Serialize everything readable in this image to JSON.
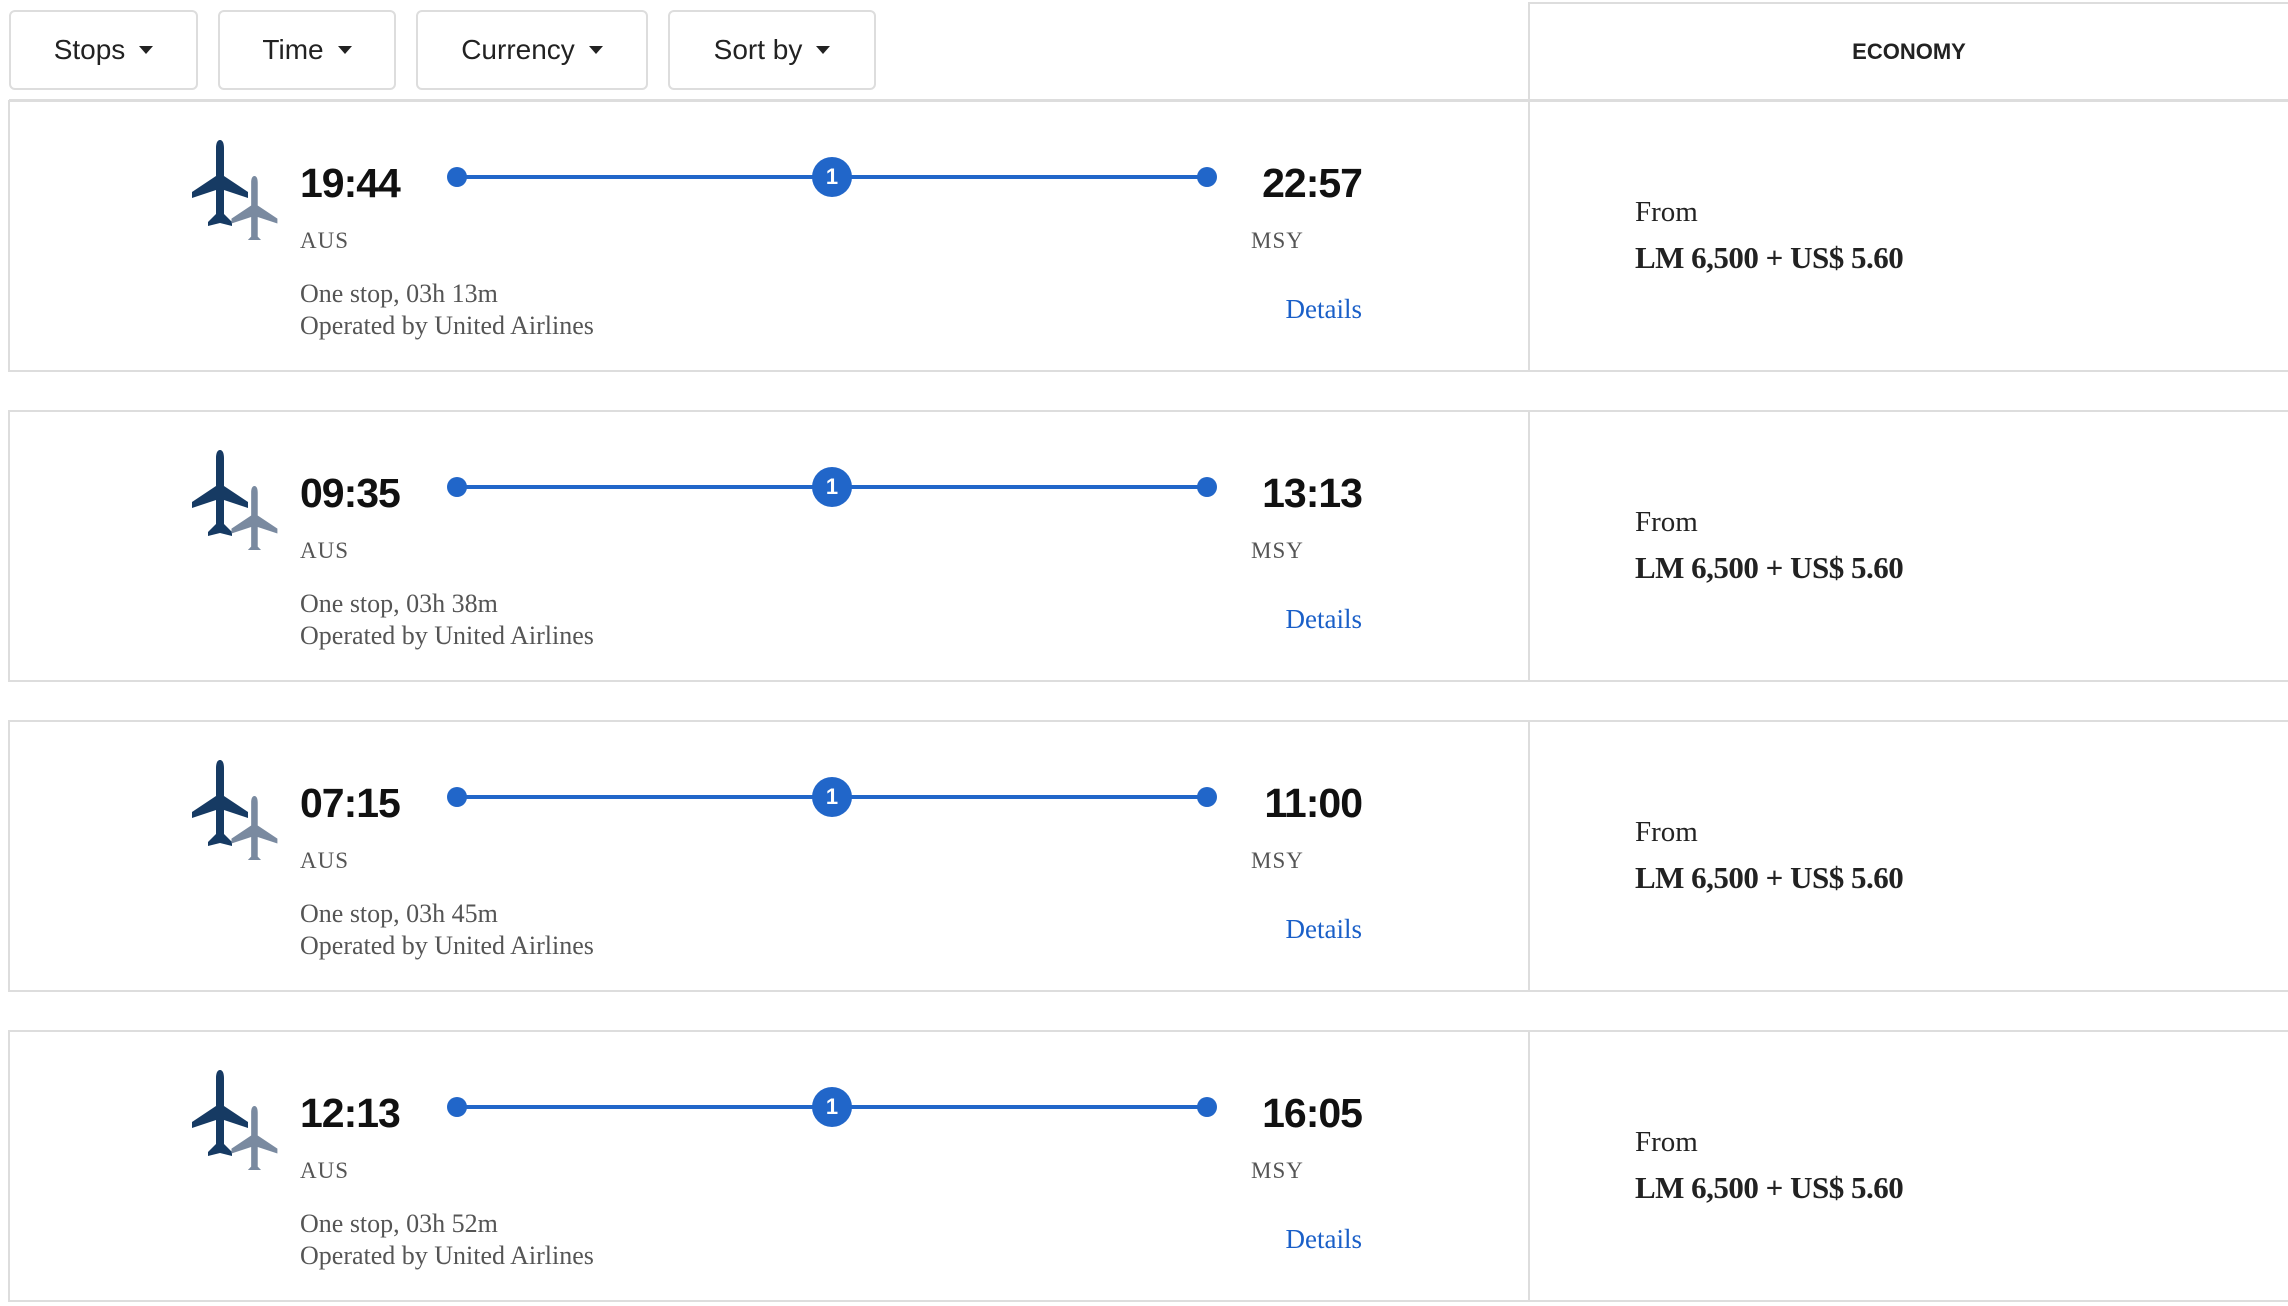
{
  "filters": [
    {
      "label": "Stops"
    },
    {
      "label": "Time"
    },
    {
      "label": "Currency"
    },
    {
      "label": "Sort by"
    }
  ],
  "cabin_header": "ECONOMY",
  "colors": {
    "accent": "#2166c9",
    "link": "#1a5fc8",
    "plane_primary": "#163a63",
    "plane_secondary": "#7a8aa0"
  },
  "flights": [
    {
      "depart_time": "19:44",
      "origin": "AUS",
      "arrive_time": "22:57",
      "destination": "MSY",
      "stops_count": "1",
      "summary": "One stop, 03h 13m",
      "operator": "Operated by United Airlines",
      "details_label": "Details",
      "from_label": "From",
      "price": "LM 6,500 + US$ 5.60"
    },
    {
      "depart_time": "09:35",
      "origin": "AUS",
      "arrive_time": "13:13",
      "destination": "MSY",
      "stops_count": "1",
      "summary": "One stop, 03h 38m",
      "operator": "Operated by United Airlines",
      "details_label": "Details",
      "from_label": "From",
      "price": "LM 6,500 + US$ 5.60"
    },
    {
      "depart_time": "07:15",
      "origin": "AUS",
      "arrive_time": "11:00",
      "destination": "MSY",
      "stops_count": "1",
      "summary": "One stop, 03h 45m",
      "operator": "Operated by United Airlines",
      "details_label": "Details",
      "from_label": "From",
      "price": "LM 6,500 + US$ 5.60"
    },
    {
      "depart_time": "12:13",
      "origin": "AUS",
      "arrive_time": "16:05",
      "destination": "MSY",
      "stops_count": "1",
      "summary": "One stop, 03h 52m",
      "operator": "Operated by United Airlines",
      "details_label": "Details",
      "from_label": "From",
      "price": "LM 6,500 + US$ 5.60"
    }
  ]
}
